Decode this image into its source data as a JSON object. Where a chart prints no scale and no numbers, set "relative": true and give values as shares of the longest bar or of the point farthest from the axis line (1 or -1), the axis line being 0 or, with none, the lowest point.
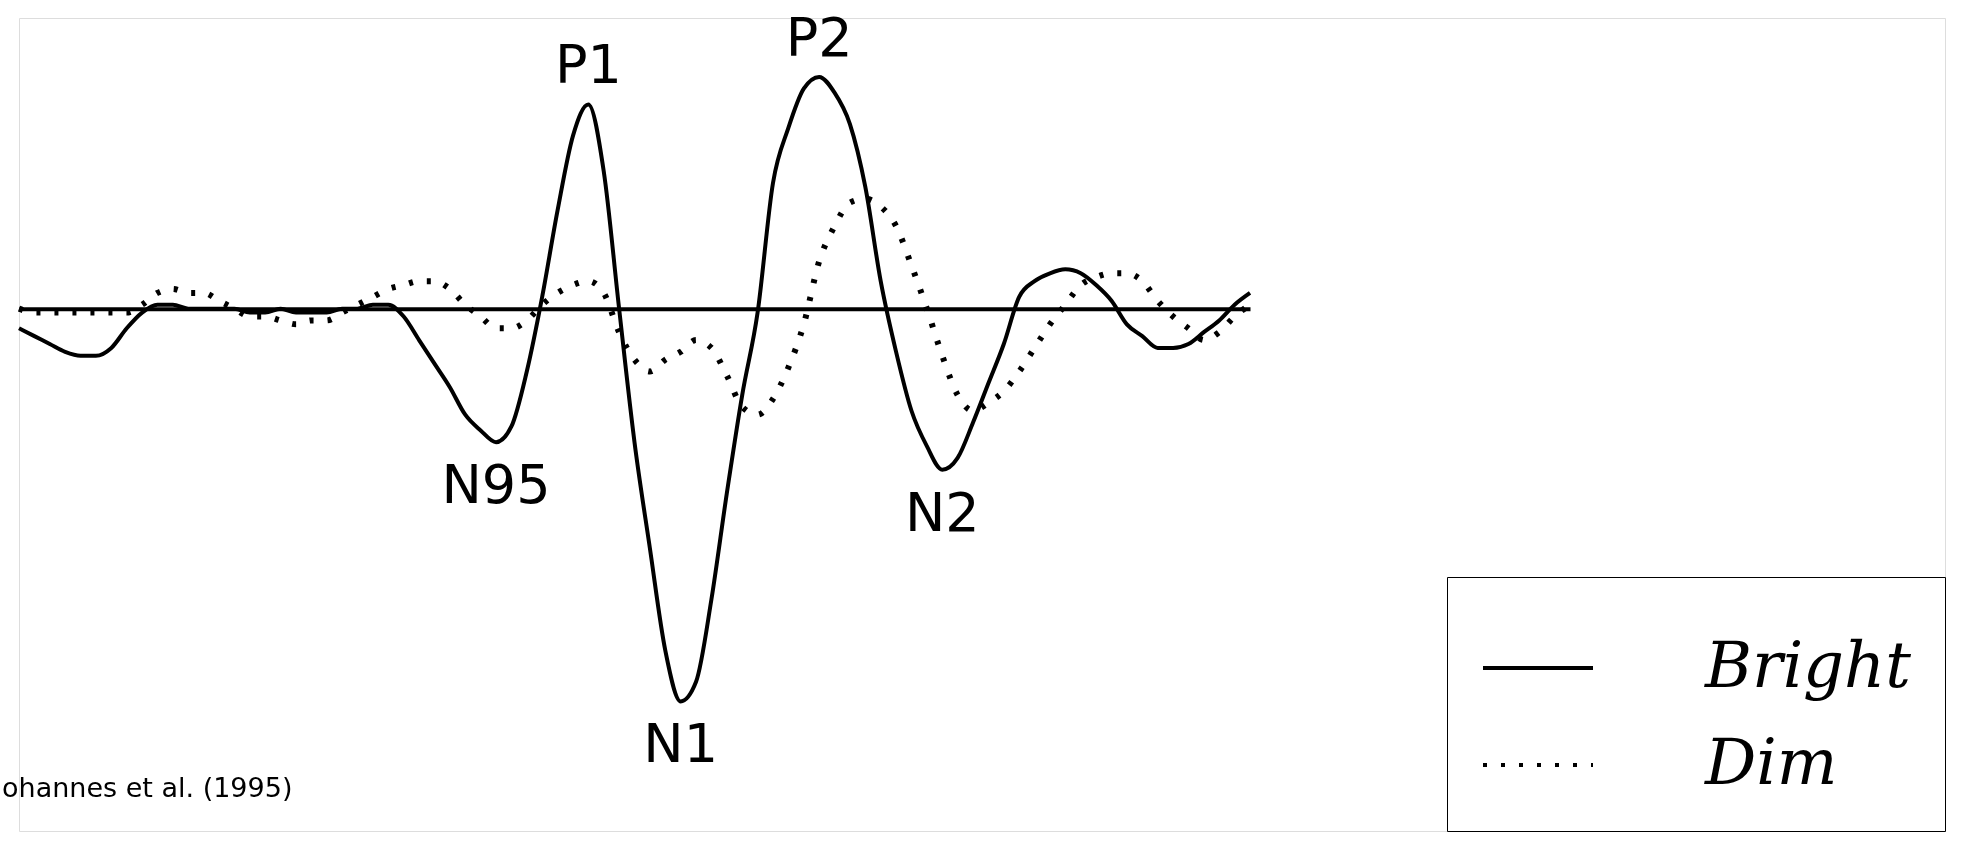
{
  "chart_data": {
    "type": "line",
    "relative": true,
    "legend": "bottom right",
    "categories": [
      null,
      null,
      null,
      null,
      null,
      null,
      null,
      null,
      null,
      null,
      null,
      null,
      null,
      null,
      null,
      null,
      null,
      null,
      null,
      null,
      null,
      null,
      null,
      null,
      null,
      null,
      null,
      null,
      null,
      null,
      null,
      null,
      null,
      null,
      null,
      null,
      null,
      null,
      null,
      null,
      null,
      null,
      null,
      null,
      null,
      null,
      null,
      null,
      null,
      null,
      null,
      null,
      null,
      null,
      null,
      null,
      null,
      null,
      null,
      null,
      null,
      null,
      null,
      null,
      null,
      null,
      null,
      null,
      null,
      null,
      null,
      null,
      null,
      null,
      null,
      null,
      null,
      null,
      null,
      null,
      null
    ],
    "series": [
      {
        "name": "Bright",
        "color": "#000000",
        "line_style": "solid",
        "values": [
          -0.05,
          -0.07,
          -0.09,
          -0.11,
          -0.12,
          -0.12,
          -0.1,
          -0.05,
          -0.01,
          0.01,
          0.01,
          0,
          0,
          0,
          0,
          -0.01,
          -0.01,
          0,
          -0.01,
          -0.01,
          -0.01,
          0,
          0,
          0.01,
          0.01,
          -0.02,
          -0.08,
          -0.14,
          -0.2,
          -0.27,
          -0.31,
          -0.34,
          -0.3,
          -0.16,
          0.03,
          0.25,
          0.44,
          0.52,
          0.35,
          0,
          -0.34,
          -0.61,
          -0.87,
          -1,
          -0.95,
          -0.74,
          -0.47,
          -0.22,
          -0.01,
          0.32,
          0.46,
          0.56,
          0.59,
          0.55,
          0.47,
          0.31,
          0.07,
          -0.11,
          -0.26,
          -0.35,
          -0.41,
          -0.38,
          -0.29,
          -0.19,
          -0.09,
          0.03,
          0.07,
          0.09,
          0.1,
          0.09,
          0.06,
          0.02,
          -0.04,
          -0.07,
          -0.1,
          -0.1,
          -0.09,
          -0.06,
          -0.03,
          0.01,
          0.04
        ]
      },
      {
        "name": "Dim",
        "color": "#000000",
        "line_style": "dotted",
        "values": [
          0,
          -0.01,
          -0.01,
          -0.01,
          -0.01,
          -0.01,
          -0.01,
          -0.01,
          0.01,
          0.04,
          0.05,
          0.04,
          0.04,
          0.02,
          0,
          -0.02,
          -0.02,
          -0.03,
          -0.04,
          -0.03,
          -0.03,
          -0.01,
          0.01,
          0.03,
          0.05,
          0.06,
          0.07,
          0.07,
          0.05,
          0.01,
          -0.02,
          -0.05,
          -0.05,
          -0.03,
          0.01,
          0.04,
          0.06,
          0.07,
          0.04,
          -0.06,
          -0.13,
          -0.16,
          -0.13,
          -0.11,
          -0.08,
          -0.1,
          -0.17,
          -0.25,
          -0.27,
          -0.23,
          -0.15,
          -0.04,
          0.12,
          0.21,
          0.27,
          0.28,
          0.26,
          0.21,
          0.11,
          0,
          -0.12,
          -0.22,
          -0.26,
          -0.24,
          -0.21,
          -0.16,
          -0.1,
          -0.04,
          0.01,
          0.06,
          0.08,
          0.09,
          0.09,
          0.07,
          0.02,
          -0.02,
          -0.05,
          -0.08,
          -0.06,
          -0.02,
          0.01
        ]
      }
    ],
    "annotations": [
      {
        "text": "P1",
        "y": 0.52
      },
      {
        "text": "P2",
        "y": 0.59
      },
      {
        "text": "N95",
        "y": -0.34
      },
      {
        "text": "N1",
        "y": -1
      },
      {
        "text": "N2",
        "y": -0.41
      },
      "ohannes et al. (1995)"
    ]
  }
}
